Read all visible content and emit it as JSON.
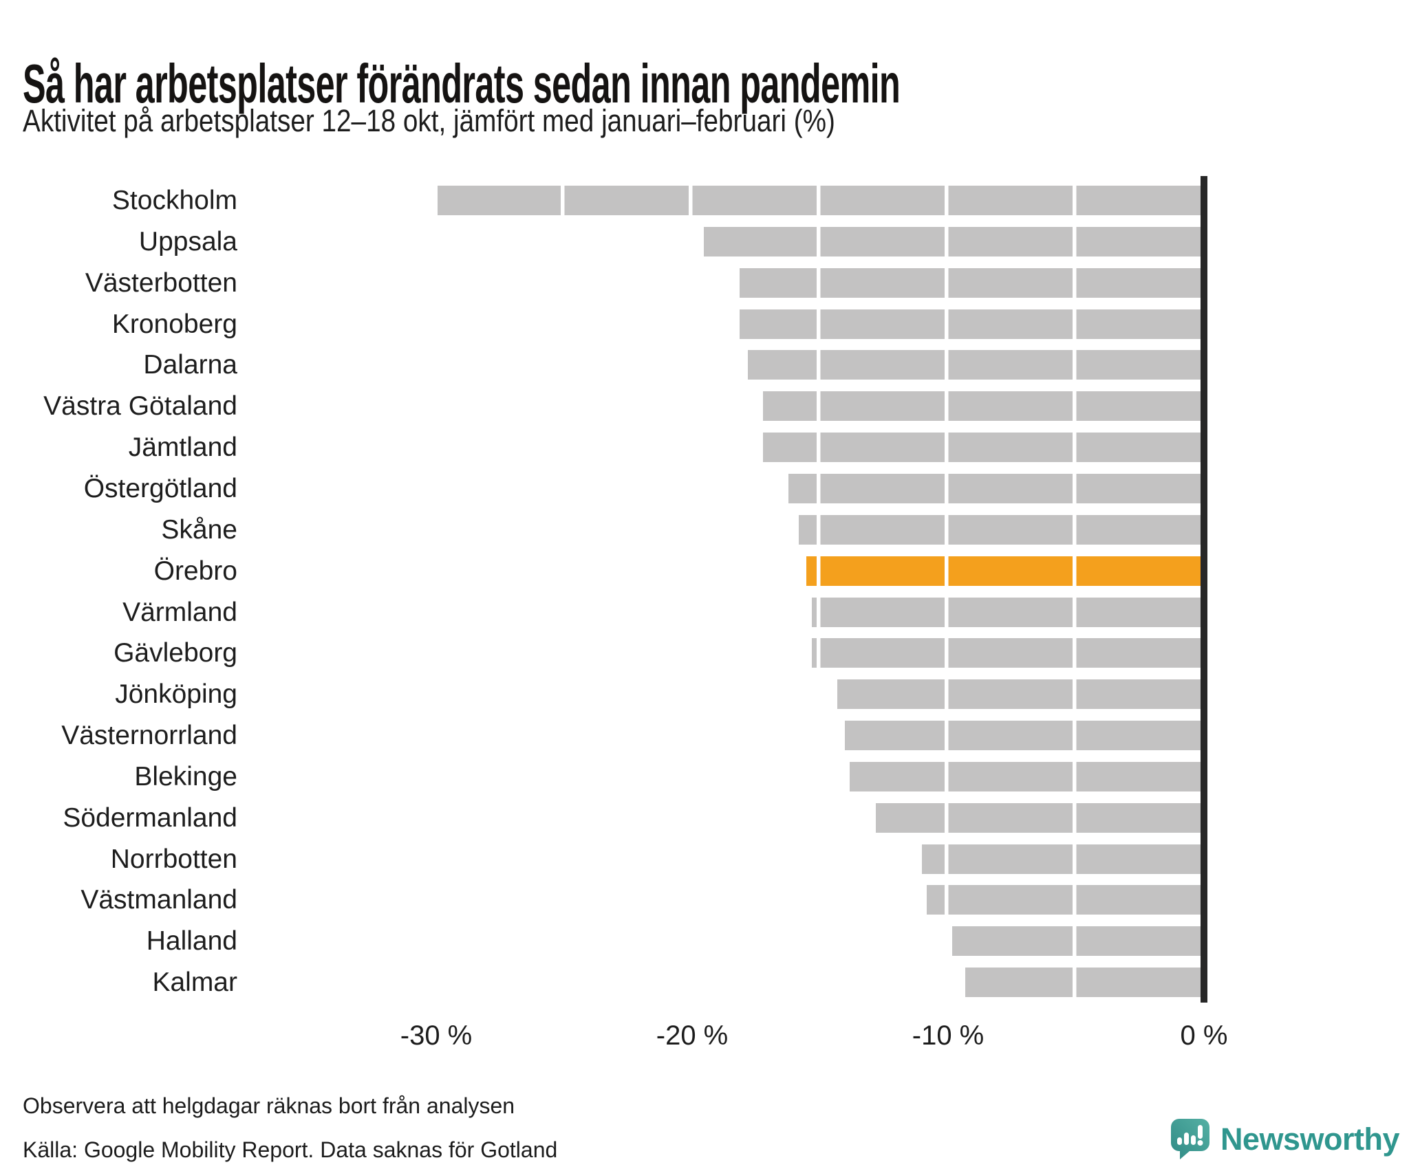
{
  "header": {
    "title": "Så har arbetsplatser förändrats sedan innan pandemin",
    "subtitle": "Aktivitet på arbetsplatser 12–18 okt, jämfört med januari–februari (%)"
  },
  "footer": {
    "note": "Observera att helgdagar räknas bort från analysen",
    "source": "Källa: Google Mobility Report. Data saknas för Gotland",
    "logo_text": "Newsworthy",
    "logo_icon": "newsworthy-speech-bubble-bar-chart-icon"
  },
  "colors": {
    "bar": "#c3c2c2",
    "highlight": "#f4a01d",
    "axis_line": "#272727",
    "text": "#1d1d1d",
    "logo_teal": "#2f968e"
  },
  "chart_data": {
    "type": "bar",
    "orientation": "horizontal",
    "title": "Så har arbetsplatser förändrats sedan innan pandemin",
    "subtitle": "Aktivitet på arbetsplatser 12–18 okt, jämfört med januari–februari (%)",
    "unit": "%",
    "categories": [
      "Stockholm",
      "Uppsala",
      "Västerbotten",
      "Kronoberg",
      "Dalarna",
      "Västra Götaland",
      "Jämtland",
      "Östergötland",
      "Skåne",
      "Örebro",
      "Värmland",
      "Gävleborg",
      "Jönköping",
      "Västernorrland",
      "Blekinge",
      "Södermanland",
      "Norrbotten",
      "Västmanland",
      "Halland",
      "Kalmar"
    ],
    "values": [
      -29.8,
      -19.4,
      -18.0,
      -18.0,
      -17.7,
      -17.1,
      -17.1,
      -16.1,
      -15.7,
      -15.4,
      -15.2,
      -15.2,
      -14.2,
      -13.9,
      -13.7,
      -12.7,
      -10.9,
      -10.7,
      -9.7,
      -9.2
    ],
    "highlight_category": "Örebro",
    "x_ticks": [
      "-30 %",
      "-20 %",
      "-10 %",
      "0 %"
    ],
    "xlim": [
      -32,
      0
    ],
    "gridline_interval_pct": 5,
    "gridlines_shown_as": "white gaps inside bars",
    "legend": "none"
  }
}
